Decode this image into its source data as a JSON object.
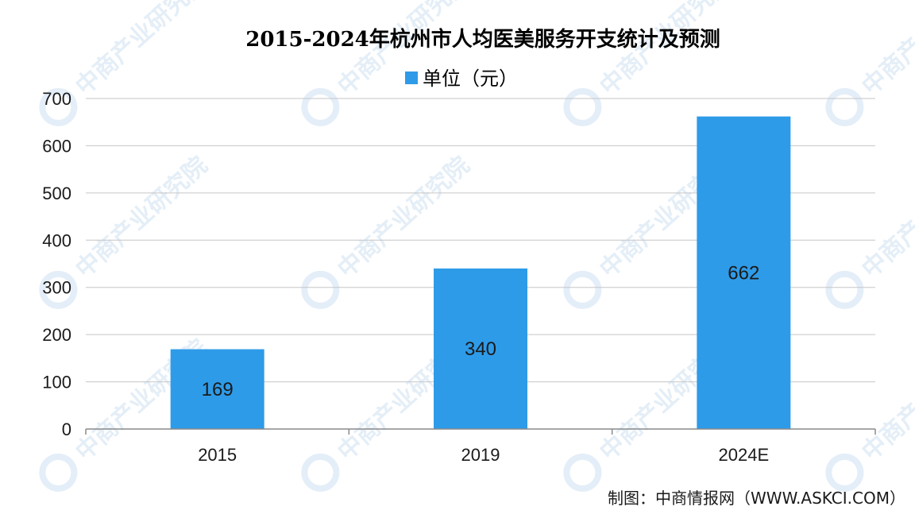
{
  "chart_data": {
    "type": "bar",
    "title": "2015-2024年杭州市人均医美服务开支统计及预测",
    "categories": [
      "2015",
      "2019",
      "2024E"
    ],
    "series": [
      {
        "name": "单位（元）",
        "values": [
          169,
          340,
          662
        ]
      }
    ],
    "data_labels": [
      "169",
      "340",
      "662"
    ],
    "ylim": [
      0,
      700
    ],
    "yticks": [
      0,
      100,
      200,
      300,
      400,
      500,
      600,
      700
    ],
    "grid": true,
    "legend_position": "top-center",
    "bar_color": "#2e9be8"
  },
  "source": "制图：中商情报网（WWW.ASKCI.COM）",
  "watermark": "中商产业研究院"
}
